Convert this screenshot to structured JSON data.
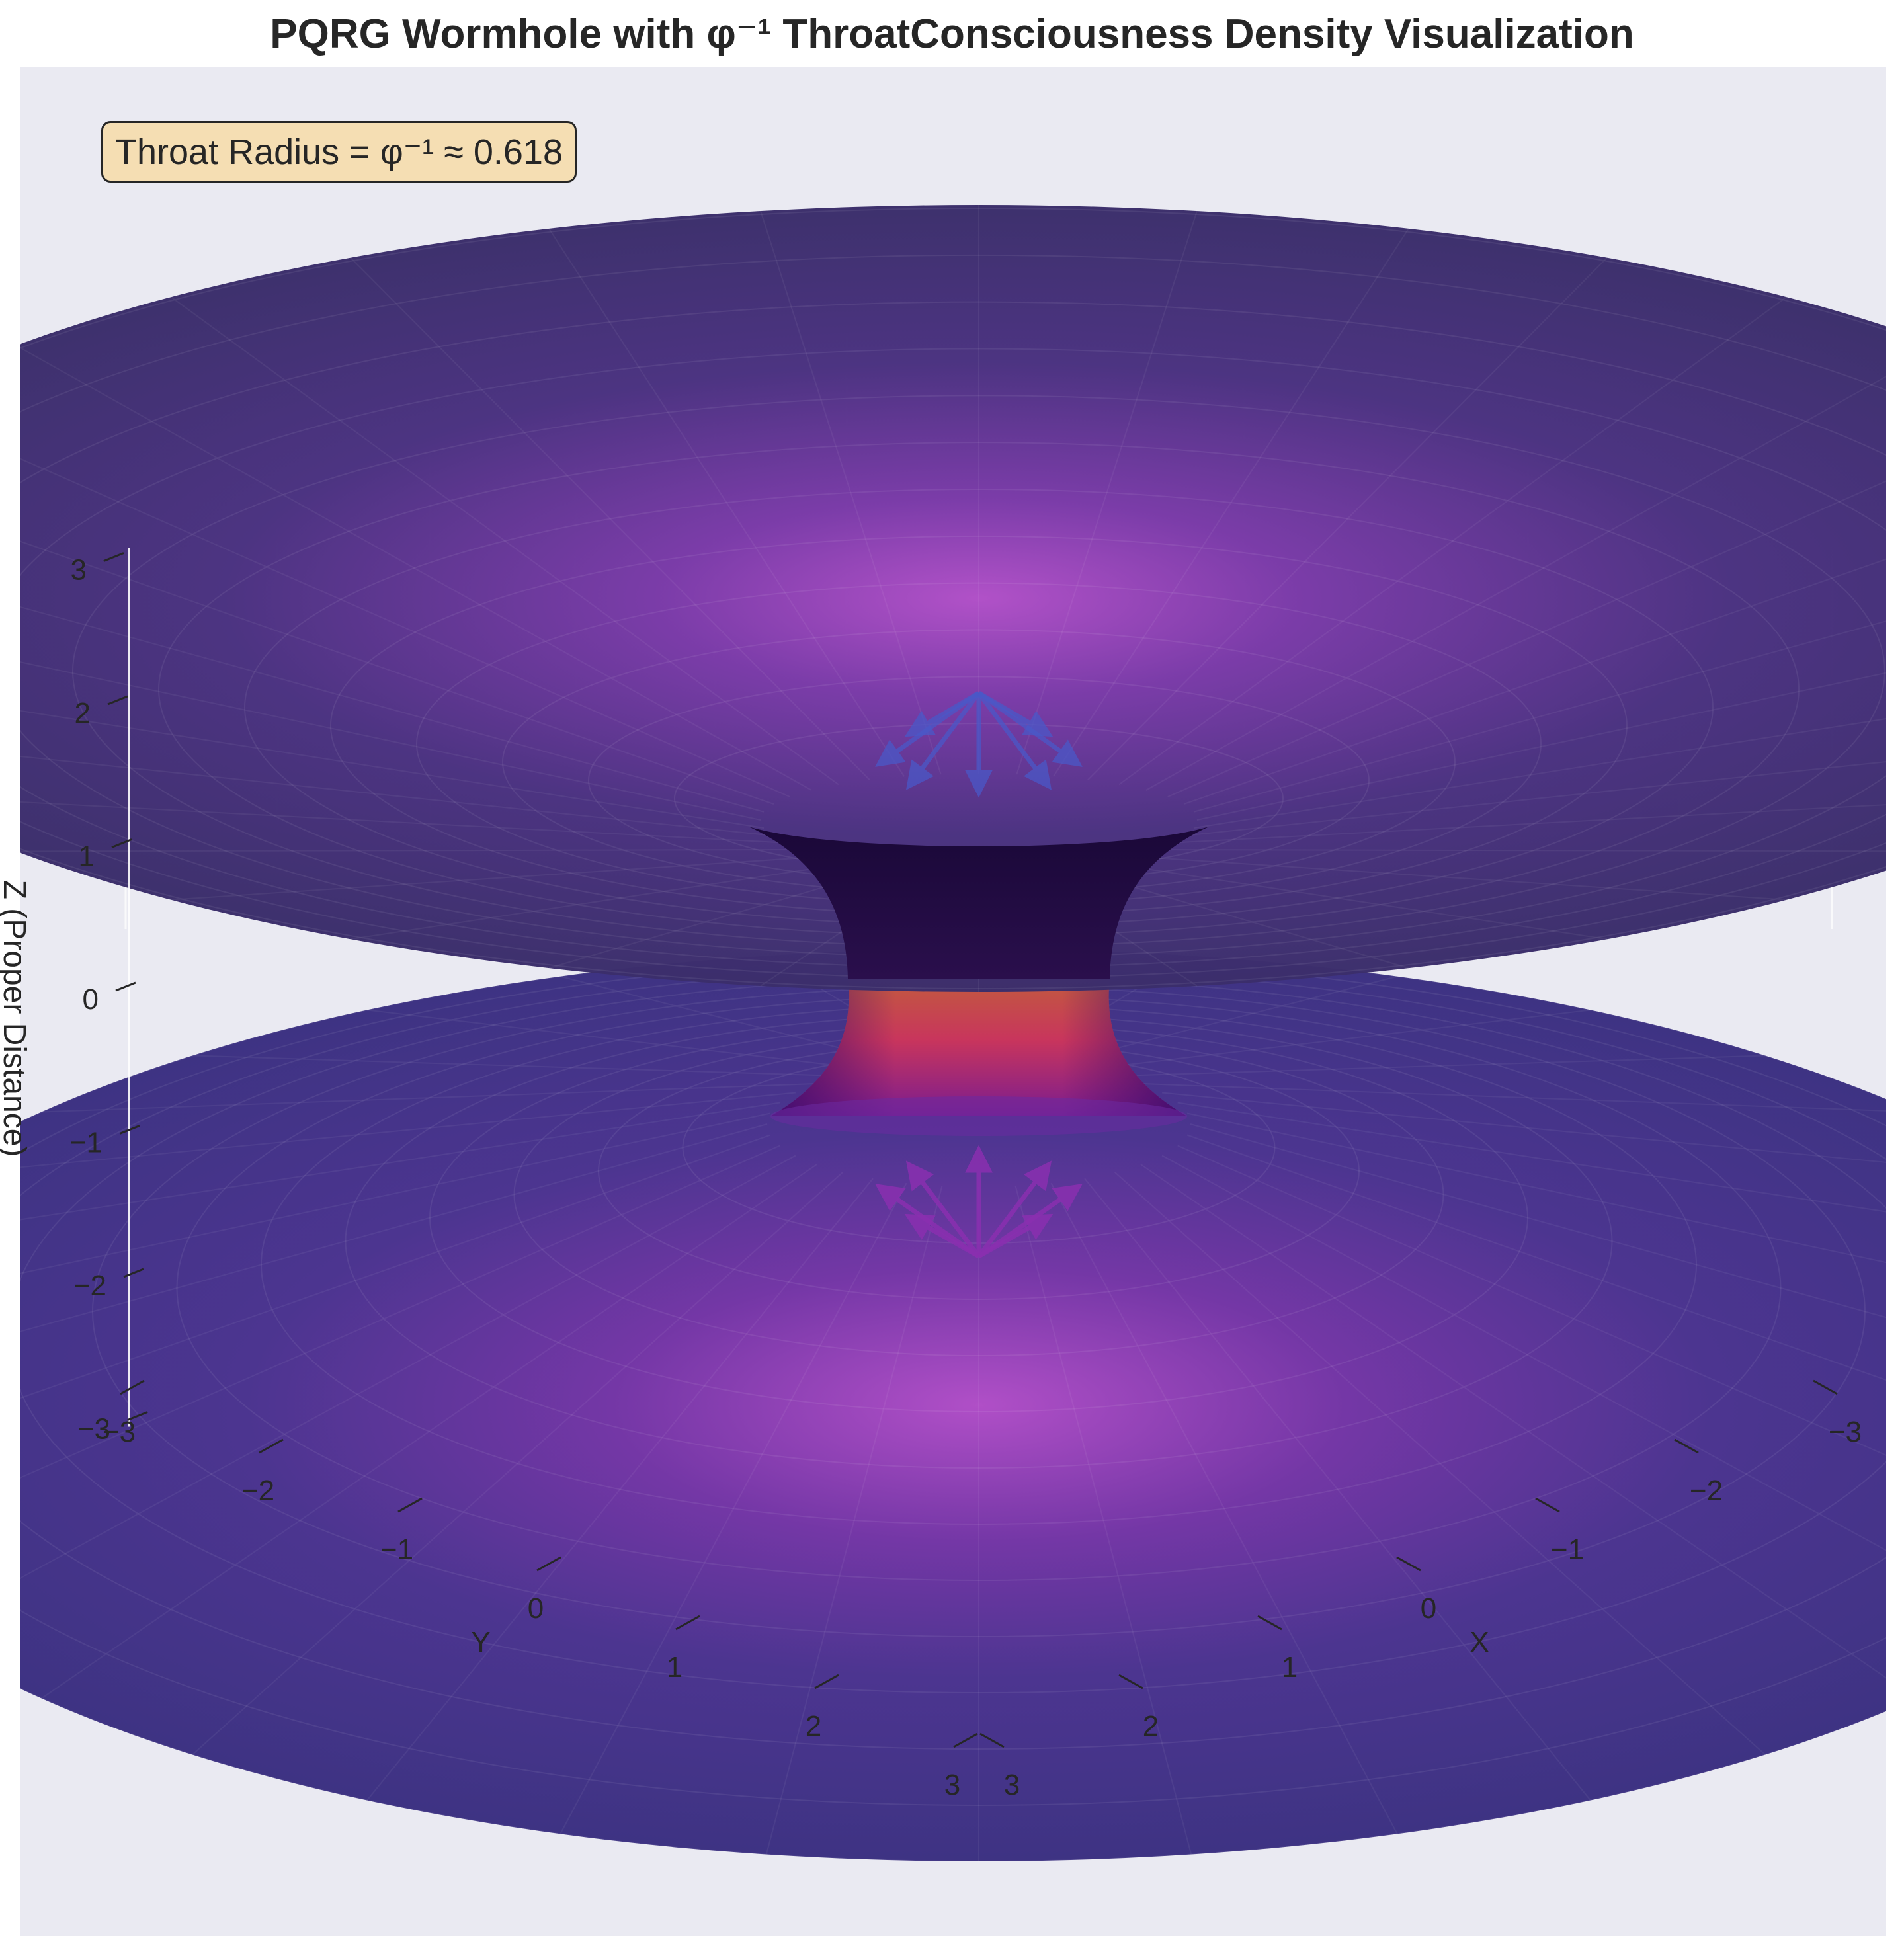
{
  "chart_data": {
    "type": "surface3d",
    "title": "PQRG Wormhole with φ⁻¹ ThroatConsciousness Density Visualization",
    "annotation": "Throat Radius = φ⁻¹ ≈ 0.618",
    "xlabel": "X",
    "ylabel": "Y",
    "zlabel": "Z (Proper Distance)",
    "throat_radius": 0.618,
    "x_ticks": [
      -3,
      -2,
      -1,
      0,
      1,
      2,
      3
    ],
    "y_ticks": [
      -3,
      -2,
      -1,
      0,
      1,
      2,
      3
    ],
    "z_ticks": [
      -3,
      -2,
      -1,
      0,
      1,
      2,
      3
    ],
    "x_tick_labels": [
      "−3",
      "−2",
      "−1",
      "0",
      "1",
      "2",
      "3"
    ],
    "y_tick_labels": [
      "−3",
      "−2",
      "−1",
      "0",
      "1",
      "2",
      "3"
    ],
    "z_tick_labels": [
      "−3",
      "−2",
      "−1",
      "0",
      "1",
      "2",
      "3"
    ],
    "xlim": [
      -3,
      3
    ],
    "ylim": [
      -3,
      3
    ],
    "zlim": [
      -3,
      3
    ],
    "colormap": "plasma",
    "colors": {
      "pane_bg": "#eaeaf2",
      "surface_outer_top": "#3b2e6b",
      "surface_outer_bottom": "#3e3383",
      "surface_center": "#b04fc7",
      "throat_dark": "#1c0b3f",
      "throat_warm": "#e0655a",
      "upper_arrows": "#4a58c8",
      "lower_arrows": "#8a2fb0"
    },
    "arrows": {
      "upper_direction": "inward to throat",
      "lower_direction": "outward from throat",
      "count_per_mouth": 7
    },
    "grid": true
  }
}
